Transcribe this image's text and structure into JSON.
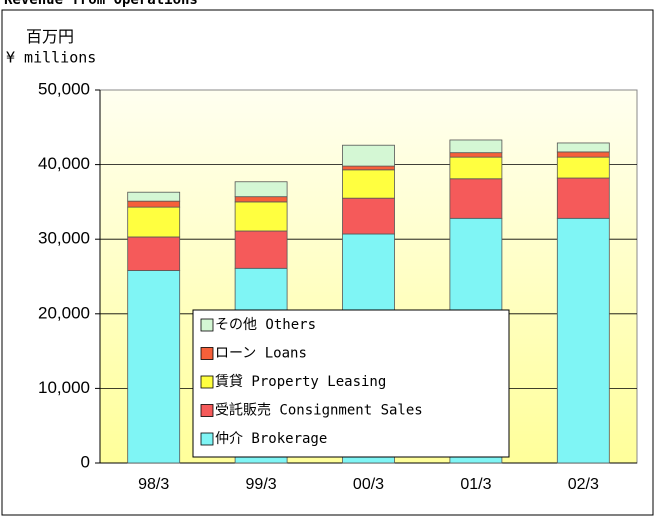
{
  "chart_data": {
    "type": "stacked-bar",
    "title": "Revenue from Operations",
    "unit_jp": "百万円",
    "unit_en": "¥ millions",
    "categories": [
      "98/3",
      "99/3",
      "00/3",
      "01/3",
      "02/3"
    ],
    "series": [
      {
        "name": "仲介 Brokerage",
        "color": "#7ff5f5",
        "values": [
          25800,
          26100,
          30700,
          32800,
          32800
        ]
      },
      {
        "name": "受託販売 Consignment Sales",
        "color": "#f55a5a",
        "values": [
          4500,
          5000,
          4800,
          5300,
          5400
        ]
      },
      {
        "name": "賃貸 Property Leasing",
        "color": "#ffff40",
        "values": [
          4000,
          3900,
          3800,
          2900,
          2800
        ]
      },
      {
        "name": "ローン Loans",
        "color": "#f5603a",
        "values": [
          800,
          700,
          500,
          600,
          700
        ]
      },
      {
        "name": "その他 Others",
        "color": "#d4f7d4",
        "values": [
          1200,
          2000,
          2800,
          1700,
          1200
        ]
      }
    ],
    "ylim": [
      0,
      50000
    ],
    "yticks": [
      0,
      {
        "value": 10000,
        "label": "10,000"
      },
      {
        "value": 20000,
        "label": "20,000"
      },
      {
        "value": 30000,
        "label": "30,000"
      },
      {
        "value": 40000,
        "label": "40,000"
      },
      {
        "value": 50000,
        "label": "50,000"
      }
    ],
    "grid": true
  }
}
